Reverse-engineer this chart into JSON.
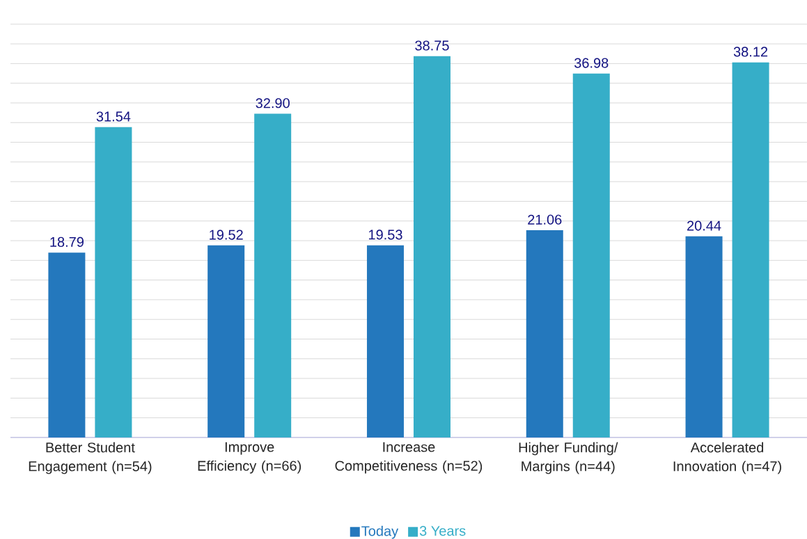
{
  "chart_data": {
    "type": "bar",
    "categories": [
      "Better Student Engagement (n=54)",
      "Improve Efficiency (n=66)",
      "Increase Competitiveness (n=52)",
      "Higher Funding/ Margins (n=44)",
      "Accelerated Innovation (n=47)"
    ],
    "series": [
      {
        "name": "Today",
        "color": "#2478bd",
        "values": [
          18.79,
          19.52,
          19.53,
          21.06,
          20.44
        ],
        "value_labels": [
          "18.79",
          "19.52",
          "19.53",
          "21.06",
          "20.44"
        ]
      },
      {
        "name": "3 Years",
        "color": "#36aec8",
        "values": [
          31.54,
          32.9,
          38.75,
          36.98,
          38.12
        ],
        "value_labels": [
          "31.54",
          "32.90",
          "38.75",
          "36.98",
          "38.12"
        ]
      }
    ],
    "tick_labels": "x",
    "grid": "y",
    "legend": "bottom"
  }
}
